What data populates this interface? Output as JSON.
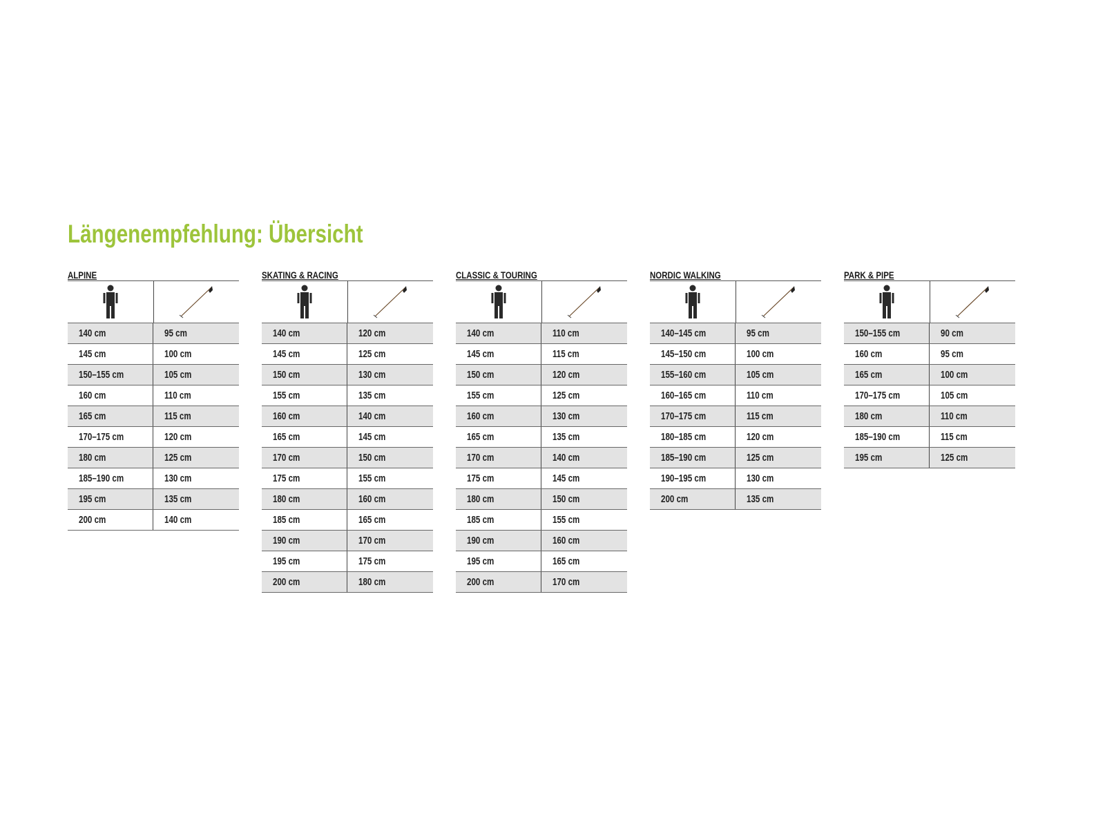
{
  "title": "Längenempfehlung: Übersicht",
  "colors": {
    "title": "#9dc43b",
    "row_shade": "#e3e3e3"
  },
  "header_icons": [
    "person-icon",
    "ski-pole-icon"
  ],
  "tables": [
    {
      "label": "ALPINE",
      "rows": [
        [
          "140 cm",
          "95 cm"
        ],
        [
          "145 cm",
          "100 cm"
        ],
        [
          "150–155 cm",
          "105 cm"
        ],
        [
          "160 cm",
          "110 cm"
        ],
        [
          "165 cm",
          "115 cm"
        ],
        [
          "170–175 cm",
          "120 cm"
        ],
        [
          "180 cm",
          "125 cm"
        ],
        [
          "185–190 cm",
          "130 cm"
        ],
        [
          "195 cm",
          "135 cm"
        ],
        [
          "200 cm",
          "140 cm"
        ]
      ]
    },
    {
      "label": "SKATING & RACING",
      "rows": [
        [
          "140 cm",
          "120 cm"
        ],
        [
          "145 cm",
          "125 cm"
        ],
        [
          "150 cm",
          "130 cm"
        ],
        [
          "155 cm",
          "135 cm"
        ],
        [
          "160 cm",
          "140 cm"
        ],
        [
          "165 cm",
          "145 cm"
        ],
        [
          "170 cm",
          "150 cm"
        ],
        [
          "175 cm",
          "155 cm"
        ],
        [
          "180 cm",
          "160 cm"
        ],
        [
          "185 cm",
          "165 cm"
        ],
        [
          "190 cm",
          "170 cm"
        ],
        [
          "195 cm",
          "175 cm"
        ],
        [
          "200 cm",
          "180 cm"
        ]
      ]
    },
    {
      "label": "CLASSIC & TOURING",
      "rows": [
        [
          "140 cm",
          "110 cm"
        ],
        [
          "145 cm",
          "115 cm"
        ],
        [
          "150 cm",
          "120 cm"
        ],
        [
          "155 cm",
          "125 cm"
        ],
        [
          "160 cm",
          "130 cm"
        ],
        [
          "165 cm",
          "135 cm"
        ],
        [
          "170 cm",
          "140 cm"
        ],
        [
          "175 cm",
          "145 cm"
        ],
        [
          "180 cm",
          "150 cm"
        ],
        [
          "185 cm",
          "155 cm"
        ],
        [
          "190 cm",
          "160 cm"
        ],
        [
          "195 cm",
          "165 cm"
        ],
        [
          "200 cm",
          "170 cm"
        ]
      ]
    },
    {
      "label": "NORDIC WALKING",
      "rows": [
        [
          "140–145 cm",
          "95 cm"
        ],
        [
          "145–150 cm",
          "100 cm"
        ],
        [
          "155–160 cm",
          "105 cm"
        ],
        [
          "160–165 cm",
          "110 cm"
        ],
        [
          "170–175 cm",
          "115 cm"
        ],
        [
          "180–185 cm",
          "120 cm"
        ],
        [
          "185–190 cm",
          "125 cm"
        ],
        [
          "190–195 cm",
          "130 cm"
        ],
        [
          "200 cm",
          "135 cm"
        ]
      ]
    },
    {
      "label": "PARK & PIPE",
      "rows": [
        [
          "150–155 cm",
          "90 cm"
        ],
        [
          "160 cm",
          "95 cm"
        ],
        [
          "165 cm",
          "100 cm"
        ],
        [
          "170–175 cm",
          "105 cm"
        ],
        [
          "180 cm",
          "110 cm"
        ],
        [
          "185–190 cm",
          "115 cm"
        ],
        [
          "195 cm",
          "125 cm"
        ]
      ]
    }
  ]
}
